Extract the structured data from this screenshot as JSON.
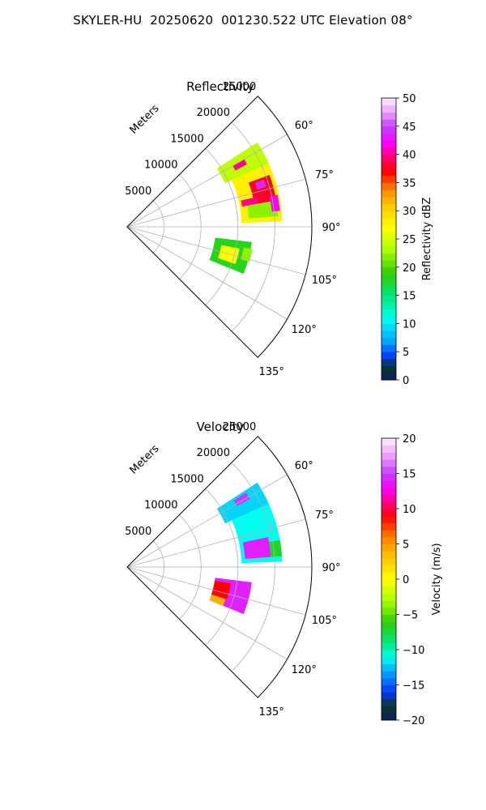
{
  "figure": {
    "suptitle": "SKYLER-HU  20250620  001230.522 UTC Elevation 08°"
  },
  "chart_data": [
    {
      "type": "heatmap",
      "projection": "polar-sector",
      "title": "Reflectivity",
      "radial_label": "Meters",
      "theta_range_deg": [
        45,
        135
      ],
      "r_range_m": [
        0,
        25000
      ],
      "r_ticks": [
        5000,
        10000,
        15000,
        20000,
        25000
      ],
      "r_tick_labels": [
        "5000",
        "10000",
        "15000",
        "20000",
        "25000"
      ],
      "theta_ticks": [
        60,
        75,
        90,
        105,
        120,
        135
      ],
      "theta_tick_labels": [
        "60°",
        "75°",
        "90°",
        "105°",
        "120°",
        "135°"
      ],
      "grid": true,
      "colorbar": {
        "label": "Reflectivity dBZ",
        "range": [
          0,
          50
        ],
        "ticks": [
          0,
          5,
          10,
          15,
          20,
          25,
          30,
          35,
          40,
          45,
          50
        ],
        "tick_labels": [
          "0",
          "5",
          "10",
          "15",
          "20",
          "25",
          "30",
          "35",
          "40",
          "45",
          "50"
        ],
        "cmap_stops": [
          [
            0,
            "#0a1f5c"
          ],
          [
            2.5,
            "#0a3a2a"
          ],
          [
            4,
            "#0a33ff"
          ],
          [
            7,
            "#00aaff"
          ],
          [
            11,
            "#00ffee"
          ],
          [
            15,
            "#00e67a"
          ],
          [
            19,
            "#33cc00"
          ],
          [
            23,
            "#aaff00"
          ],
          [
            27,
            "#ffff00"
          ],
          [
            31,
            "#ffc800"
          ],
          [
            34,
            "#ff8000"
          ],
          [
            37,
            "#ff0000"
          ],
          [
            40,
            "#ff0088"
          ],
          [
            42,
            "#ff00ff"
          ],
          [
            45,
            "#c040ff"
          ],
          [
            47,
            "#e68cff"
          ],
          [
            50,
            "#fff0ff"
          ]
        ]
      },
      "echo_regions": [
        {
          "theta": [
            57,
            66
          ],
          "r": [
            14500,
            21000
          ],
          "value": 24
        },
        {
          "theta": [
            60,
            62.5
          ],
          "r": [
            16500,
            18300
          ],
          "value": 40
        },
        {
          "theta": [
            66,
            88
          ],
          "r": [
            15500,
            21000
          ],
          "value": 28
        },
        {
          "theta": [
            70,
            80
          ],
          "r": [
            17500,
            20500
          ],
          "value": 38
        },
        {
          "theta": [
            71,
            74
          ],
          "r": [
            18300,
            19600
          ],
          "value": 44
        },
        {
          "theta": [
            77,
            80
          ],
          "r": [
            15800,
            18000
          ],
          "value": 40
        },
        {
          "theta": [
            80,
            86
          ],
          "r": [
            16500,
            20500
          ],
          "value": 22
        },
        {
          "theta": [
            78,
            84
          ],
          "r": [
            19700,
            20800
          ],
          "value": 42
        },
        {
          "theta": [
            97,
            112
          ],
          "r": [
            12000,
            17000
          ],
          "value": 18
        },
        {
          "theta": [
            101,
            109
          ],
          "r": [
            13000,
            15500
          ],
          "value": 27
        },
        {
          "theta": [
            100,
            106
          ],
          "r": [
            16000,
            17200
          ],
          "value": 22
        }
      ]
    },
    {
      "type": "heatmap",
      "projection": "polar-sector",
      "title": "Velocity",
      "radial_label": "Meters",
      "theta_range_deg": [
        45,
        135
      ],
      "r_range_m": [
        0,
        25000
      ],
      "r_ticks": [
        5000,
        10000,
        15000,
        20000,
        25000
      ],
      "r_tick_labels": [
        "5000",
        "10000",
        "15000",
        "20000",
        "25000"
      ],
      "theta_ticks": [
        60,
        75,
        90,
        105,
        120,
        135
      ],
      "theta_tick_labels": [
        "60°",
        "75°",
        "90°",
        "105°",
        "120°",
        "135°"
      ],
      "grid": true,
      "colorbar": {
        "label": "Velocity (m/s)",
        "range": [
          -20,
          20
        ],
        "ticks": [
          -20,
          -15,
          -10,
          -5,
          0,
          5,
          10,
          15,
          20
        ],
        "tick_labels": [
          "−20",
          "−15",
          "−10",
          "−5",
          "0",
          "5",
          "10",
          "15",
          "20"
        ],
        "cmap_stops": [
          [
            -20,
            "#0a1f5c"
          ],
          [
            -18,
            "#0a3a2a"
          ],
          [
            -16,
            "#0a33ff"
          ],
          [
            -13,
            "#00aaff"
          ],
          [
            -11,
            "#00ffee"
          ],
          [
            -9,
            "#00e67a"
          ],
          [
            -6,
            "#33cc00"
          ],
          [
            -3,
            "#aaff00"
          ],
          [
            0,
            "#ffff00"
          ],
          [
            3,
            "#ffc800"
          ],
          [
            6,
            "#ff8000"
          ],
          [
            9,
            "#ff0000"
          ],
          [
            11,
            "#ff0088"
          ],
          [
            13,
            "#ff00ff"
          ],
          [
            15,
            "#c040ff"
          ],
          [
            17,
            "#e68cff"
          ],
          [
            20,
            "#fff0ff"
          ]
        ]
      },
      "echo_regions": [
        {
          "theta": [
            57,
            66
          ],
          "r": [
            14500,
            21000
          ],
          "value": -12
        },
        {
          "theta": [
            58,
            61
          ],
          "r": [
            17000,
            19000
          ],
          "value": 15
        },
        {
          "theta": [
            66,
            88
          ],
          "r": [
            15500,
            21000
          ],
          "value": -11
        },
        {
          "theta": [
            78,
            86
          ],
          "r": [
            16000,
            19500
          ],
          "value": 14
        },
        {
          "theta": [
            80,
            86
          ],
          "r": [
            19500,
            21000
          ],
          "value": -7
        },
        {
          "theta": [
            97,
            112
          ],
          "r": [
            12000,
            17000
          ],
          "value": 14
        },
        {
          "theta": [
            99,
            108
          ],
          "r": [
            12000,
            14200
          ],
          "value": 9
        },
        {
          "theta": [
            108,
            112
          ],
          "r": [
            12000,
            14000
          ],
          "value": 4
        }
      ]
    }
  ]
}
